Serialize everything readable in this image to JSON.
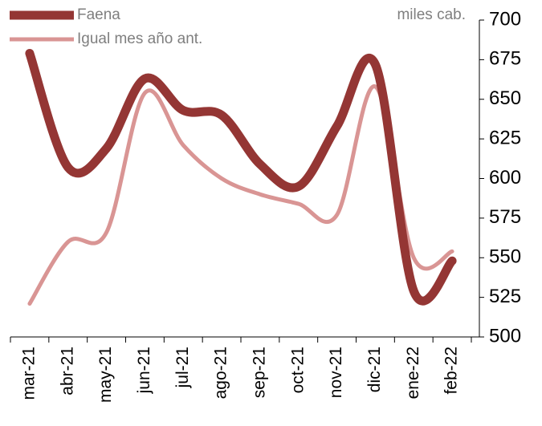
{
  "chart_data": {
    "type": "line",
    "y_axis_label": "miles cab.",
    "categories": [
      "mar-21",
      "abr-21",
      "may-21",
      "jun-21",
      "jul-21",
      "ago-21",
      "sep-21",
      "oct-21",
      "nov-21",
      "dic-21",
      "ene-22",
      "feb-22"
    ],
    "series": [
      {
        "name": "Faena",
        "color": "#943634",
        "values": [
          679,
          607,
          619,
          663,
          643,
          640,
          609,
          595,
          633,
          672,
          529,
          548
        ]
      },
      {
        "name": "Igual mes año ant.",
        "color": "#d99594",
        "values": [
          521,
          560,
          566,
          654,
          621,
          600,
          590,
          584,
          577,
          658,
          550,
          554
        ]
      }
    ],
    "ylim": [
      500,
      700
    ],
    "yticks": [
      500,
      525,
      550,
      575,
      600,
      625,
      650,
      675,
      700
    ],
    "y_axis_side": "right",
    "smooth": true
  }
}
